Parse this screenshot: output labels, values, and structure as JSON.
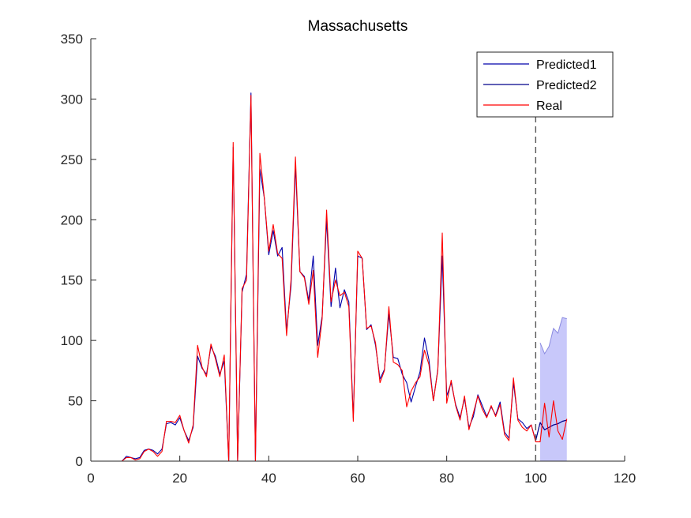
{
  "chart_data": {
    "type": "line",
    "title": "Massachusetts",
    "xlabel": "",
    "ylabel": "",
    "xlim": [
      0,
      120
    ],
    "ylim": [
      0,
      350
    ],
    "xticks": [
      0,
      20,
      40,
      60,
      80,
      100,
      120
    ],
    "yticks": [
      0,
      50,
      100,
      150,
      200,
      250,
      300,
      350
    ],
    "xtick_labels": [
      "0",
      "20",
      "40",
      "60",
      "80",
      "100",
      "120"
    ],
    "ytick_labels": [
      "0",
      "50",
      "100",
      "150",
      "200",
      "250",
      "300",
      "350"
    ],
    "grid": false,
    "legend_position": "top-right",
    "vline": {
      "x": 100,
      "style": "dashed",
      "color": "#555555"
    },
    "series": [
      {
        "name": "Predicted1",
        "color": "#0000aa",
        "x": [
          1,
          2,
          3,
          4,
          5,
          6,
          7,
          8,
          9,
          10,
          11,
          12,
          13,
          14,
          15,
          16,
          17,
          18,
          19,
          20,
          21,
          22,
          23,
          24,
          25,
          26,
          27,
          28,
          29,
          30,
          31,
          32,
          33,
          34,
          35,
          36,
          37,
          38,
          39,
          40,
          41,
          42,
          43,
          44,
          45,
          46,
          47,
          48,
          49,
          50,
          51,
          52,
          53,
          54,
          55,
          56,
          57,
          58,
          59,
          60,
          61,
          62,
          63,
          64,
          65,
          66,
          67,
          68,
          69,
          70,
          71,
          72,
          73,
          74,
          75,
          76,
          77,
          78,
          79,
          80,
          81,
          82,
          83,
          84,
          85,
          86,
          87,
          88,
          89,
          90,
          91,
          92,
          93,
          94,
          95,
          96,
          97,
          98,
          99,
          100,
          101,
          102,
          103,
          104,
          105,
          106,
          107
        ],
        "values": [
          0,
          0,
          0,
          0,
          0,
          0,
          0,
          4,
          3,
          2,
          3,
          9,
          10,
          9,
          6,
          10,
          31,
          32,
          30,
          36,
          25,
          17,
          28,
          87,
          77,
          72,
          95,
          87,
          72,
          83,
          0,
          260,
          0,
          140,
          155,
          305,
          0,
          242,
          218,
          171,
          191,
          170,
          177,
          108,
          145,
          245,
          157,
          153,
          133,
          170,
          96,
          120,
          200,
          128,
          160,
          127,
          142,
          132,
          36,
          170,
          168,
          109,
          113,
          96,
          68,
          76,
          122,
          86,
          85,
          72,
          65,
          49,
          62,
          74,
          102,
          84,
          50,
          76,
          170,
          54,
          65,
          47,
          36,
          52,
          28,
          37,
          55,
          46,
          37,
          45,
          38,
          49,
          24,
          19,
          65,
          35,
          32,
          27,
          30,
          17,
          32,
          26,
          28,
          30,
          31,
          33,
          34
        ]
      },
      {
        "name": "Predicted2",
        "color": "#00008b",
        "x": [
          100,
          101,
          102,
          103,
          104,
          105,
          106,
          107
        ],
        "values": [
          17,
          32,
          26,
          28,
          30,
          31,
          33,
          34
        ]
      },
      {
        "name": "Real",
        "color": "#ff0000",
        "x": [
          1,
          2,
          3,
          4,
          5,
          6,
          7,
          8,
          9,
          10,
          11,
          12,
          13,
          14,
          15,
          16,
          17,
          18,
          19,
          20,
          21,
          22,
          23,
          24,
          25,
          26,
          27,
          28,
          29,
          30,
          31,
          32,
          33,
          34,
          35,
          36,
          37,
          38,
          39,
          40,
          41,
          42,
          43,
          44,
          45,
          46,
          47,
          48,
          49,
          50,
          51,
          52,
          53,
          54,
          55,
          56,
          57,
          58,
          59,
          60,
          61,
          62,
          63,
          64,
          65,
          66,
          67,
          68,
          69,
          70,
          71,
          72,
          73,
          74,
          75,
          76,
          77,
          78,
          79,
          80,
          81,
          82,
          83,
          84,
          85,
          86,
          87,
          88,
          89,
          90,
          91,
          92,
          93,
          94,
          95,
          96,
          97,
          98,
          99,
          100,
          101,
          102,
          103,
          104,
          105,
          106,
          107
        ],
        "values": [
          0,
          0,
          0,
          0,
          0,
          0,
          0,
          3,
          3,
          1,
          2,
          8,
          10,
          8,
          4,
          8,
          33,
          33,
          32,
          38,
          25,
          15,
          30,
          96,
          78,
          70,
          97,
          85,
          70,
          88,
          0,
          264,
          0,
          143,
          150,
          303,
          0,
          255,
          218,
          174,
          196,
          172,
          168,
          104,
          150,
          252,
          157,
          152,
          130,
          158,
          86,
          118,
          208,
          132,
          150,
          137,
          140,
          128,
          33,
          174,
          168,
          110,
          112,
          98,
          65,
          75,
          128,
          82,
          80,
          75,
          45,
          58,
          65,
          70,
          92,
          80,
          50,
          75,
          189,
          48,
          67,
          46,
          34,
          54,
          26,
          40,
          54,
          43,
          36,
          46,
          37,
          47,
          22,
          17,
          69,
          34,
          28,
          25,
          30,
          16,
          16,
          48,
          20,
          50,
          25,
          18,
          35
        ]
      }
    ],
    "band": {
      "color": "#c8c8fa",
      "edge_color": "#8a8ae0",
      "x": [
        101,
        102,
        103,
        104,
        105,
        106,
        107
      ],
      "lower": [
        0,
        0,
        0,
        0,
        0,
        0,
        0
      ],
      "upper": [
        98,
        89,
        95,
        110,
        106,
        119,
        118
      ]
    },
    "legend": {
      "entries": [
        "Predicted1",
        "Predicted2",
        "Real"
      ]
    }
  }
}
